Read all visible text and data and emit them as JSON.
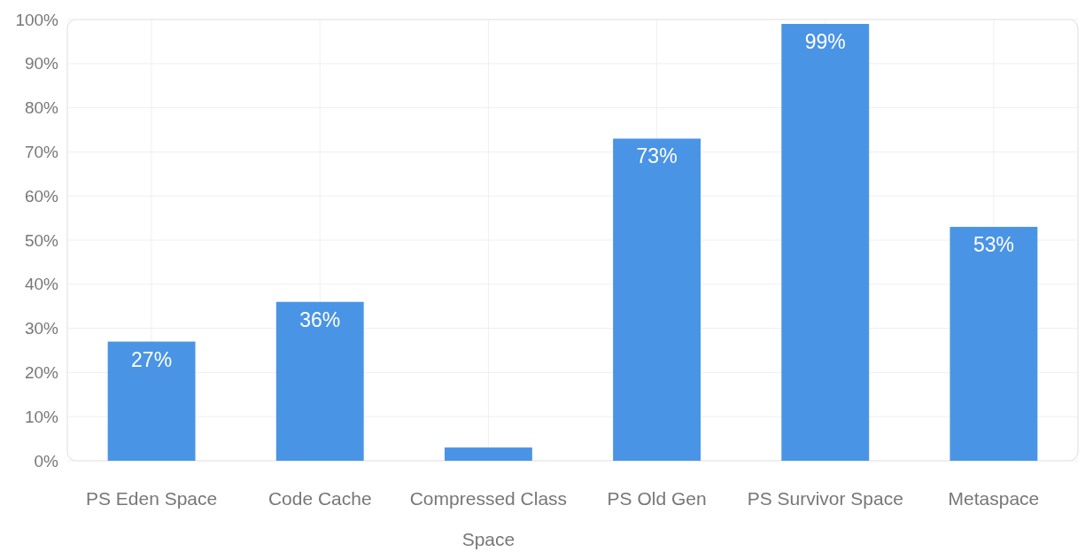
{
  "chart_data": {
    "type": "bar",
    "categories": [
      "PS Eden Space",
      "Code Cache",
      "Compressed Class Space",
      "PS Old Gen",
      "PS Survivor Space",
      "Metaspace"
    ],
    "values": [
      27,
      36,
      3,
      73,
      99,
      53
    ],
    "value_labels": [
      "27%",
      "36%",
      null,
      "73%",
      "99%",
      "53%"
    ],
    "color": "#4a94e6",
    "ylim": [
      0,
      100
    ],
    "yticks": [
      {
        "value": 0,
        "label": "0%"
      },
      {
        "value": 10,
        "label": "10%"
      },
      {
        "value": 20,
        "label": "20%"
      },
      {
        "value": 30,
        "label": "30%"
      },
      {
        "value": 40,
        "label": "40%"
      },
      {
        "value": 50,
        "label": "50%"
      },
      {
        "value": 60,
        "label": "60%"
      },
      {
        "value": 70,
        "label": "70%"
      },
      {
        "value": 80,
        "label": "80%"
      },
      {
        "value": 90,
        "label": "90%"
      },
      {
        "value": 100,
        "label": "100%"
      }
    ],
    "grid": true
  }
}
